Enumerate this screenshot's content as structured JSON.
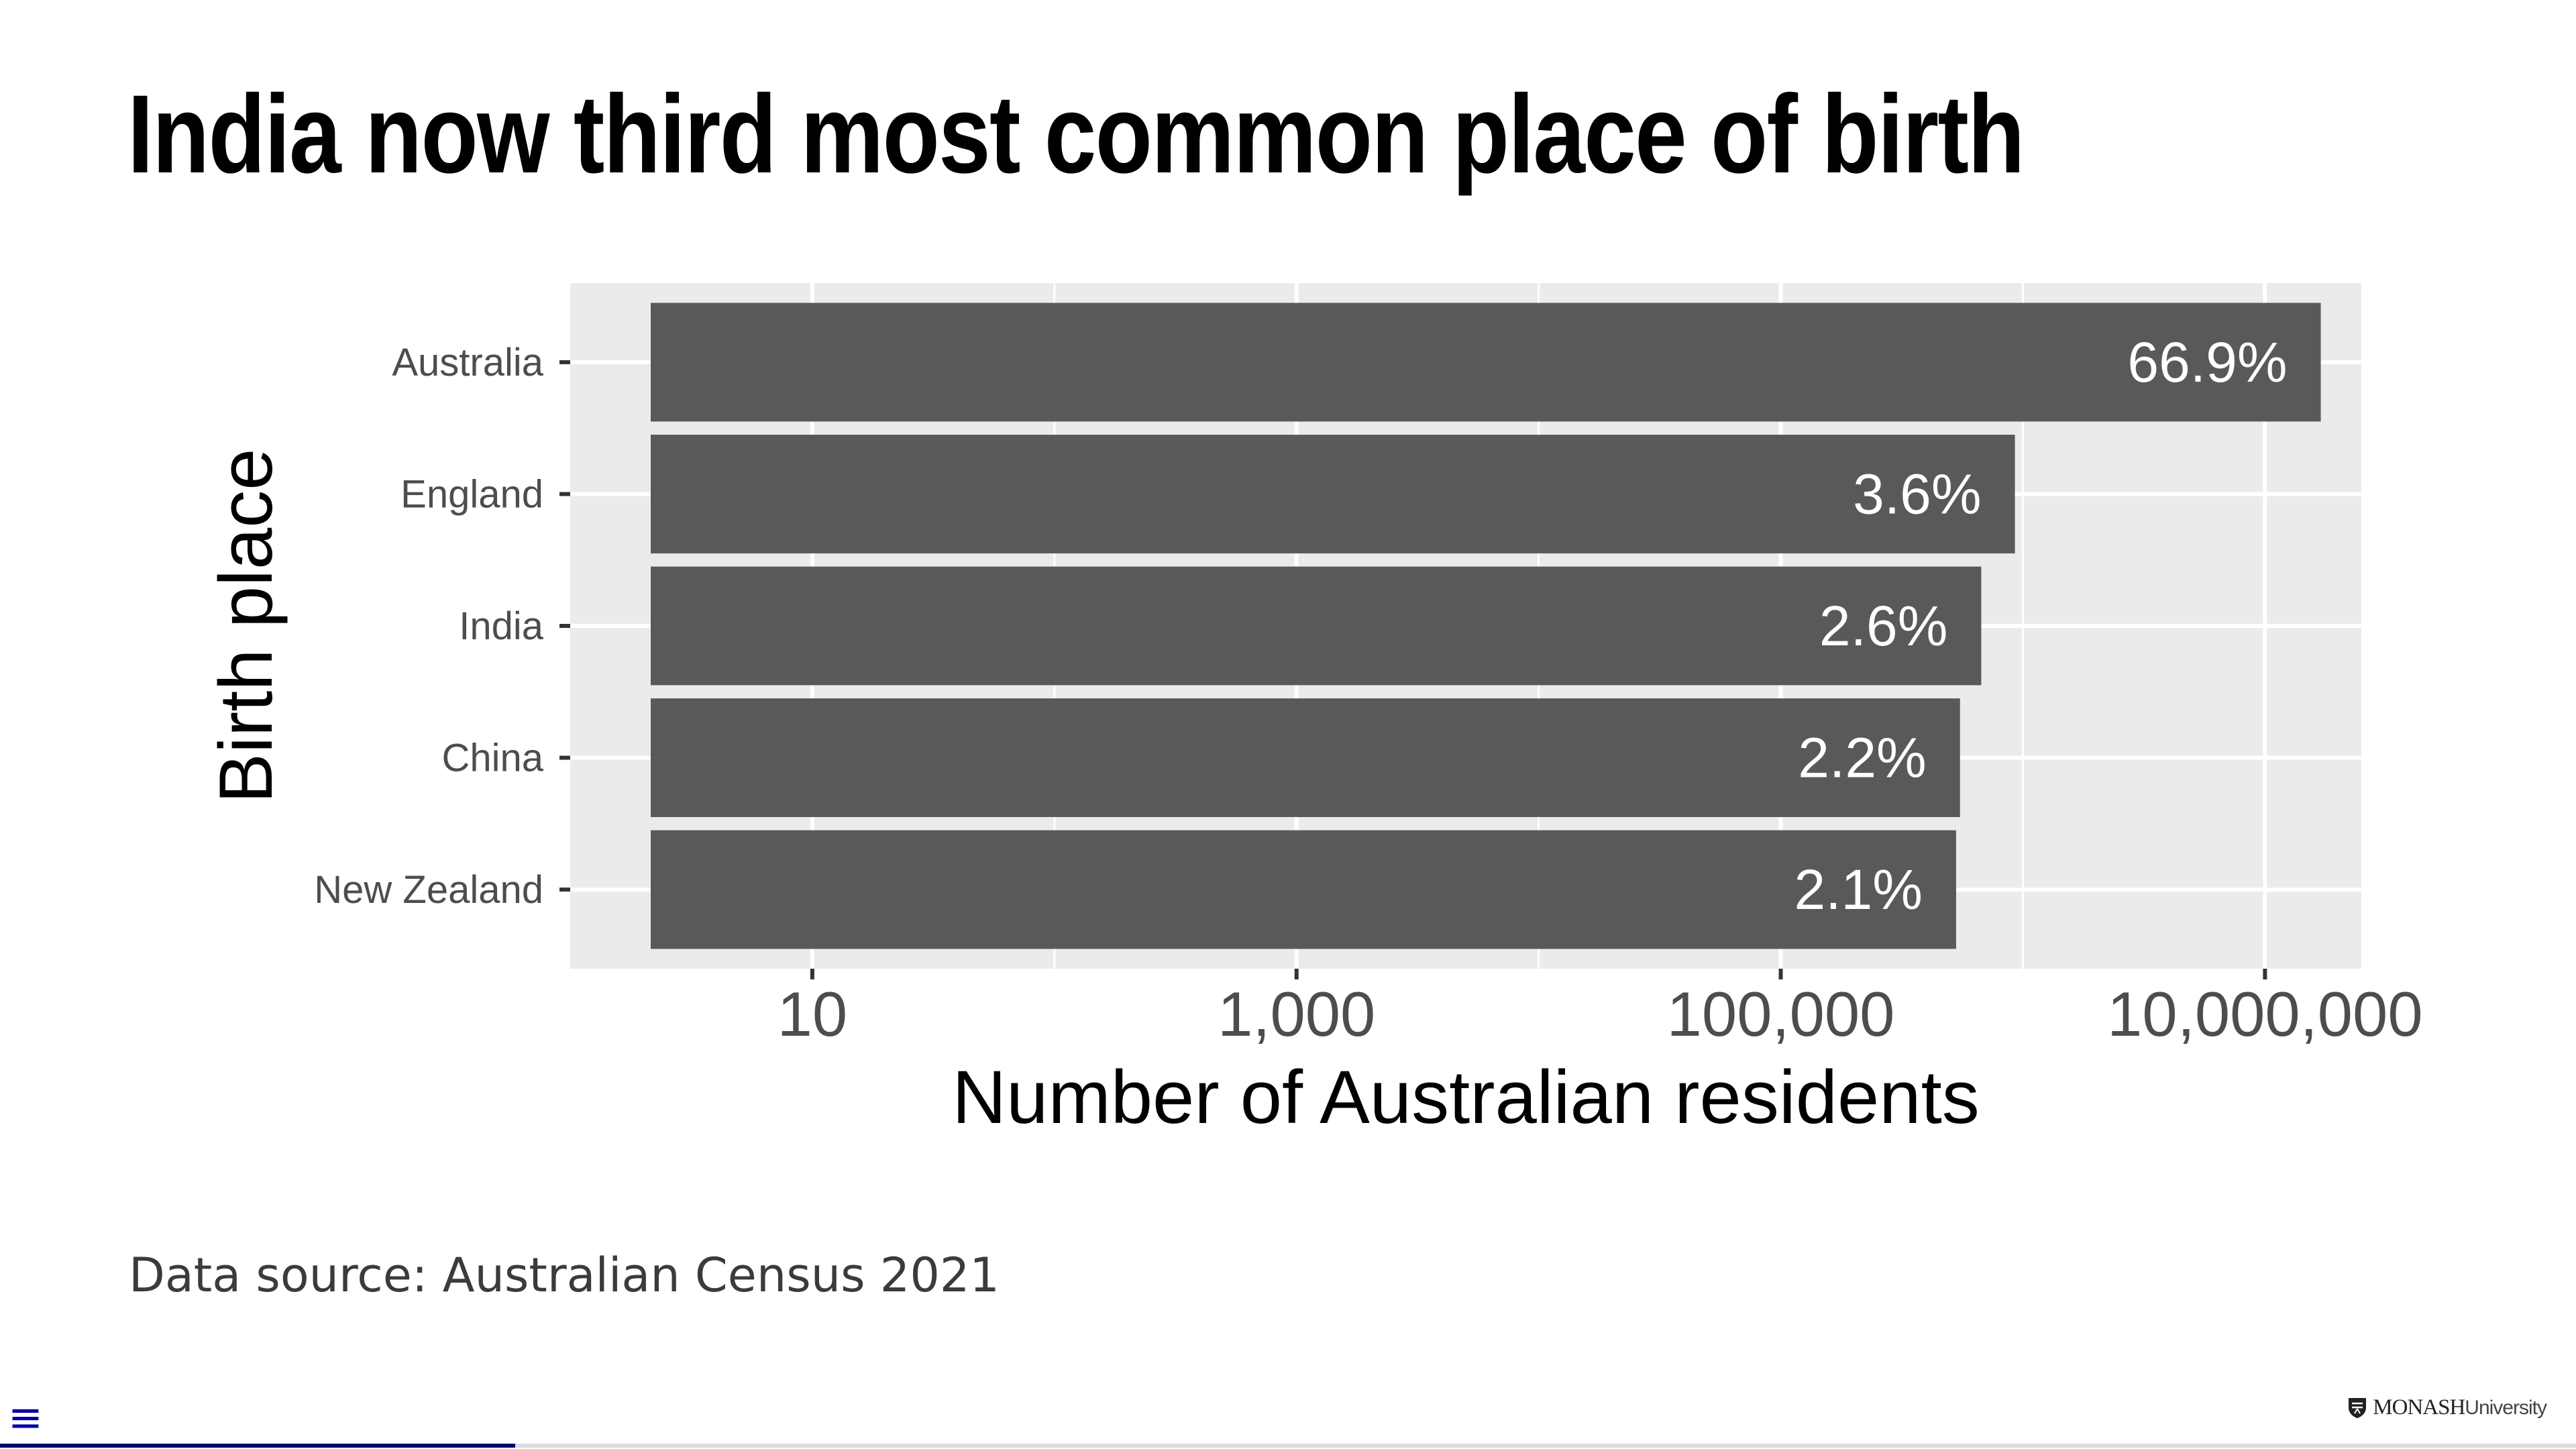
{
  "slide": {
    "title": "India now third most common place of birth",
    "source": "Data source: Australian Census 2021",
    "menu_icon": "hamburger-menu-icon",
    "progress": 0.2,
    "brand": {
      "main": "MONASH",
      "sub": "University",
      "icon": "crest-icon"
    }
  },
  "chart_data": {
    "type": "bar",
    "orientation": "horizontal",
    "xlabel": "Number of Australian residents",
    "ylabel": "Birth place",
    "x_scale": "log10",
    "xlim": [
      1,
      25000000
    ],
    "x_ticks": [
      10,
      1000,
      100000,
      10000000
    ],
    "x_tick_labels": [
      "10",
      "1,000",
      "100,000",
      "10,000,000"
    ],
    "categories": [
      "Australia",
      "England",
      "India",
      "China",
      "New Zealand"
    ],
    "values": [
      17000000,
      927000,
      673000,
      550000,
      530000
    ],
    "data_labels": [
      "66.9%",
      "3.6%",
      "2.6%",
      "2.2%",
      "2.1%"
    ],
    "grid": true,
    "legend": "none",
    "colors": {
      "bar": "#595959",
      "panel": "#ebebeb",
      "grid": "#ffffff",
      "bar_label": "#ffffff",
      "tick_label": "#4d4d4d",
      "axis_title": "#000000"
    }
  }
}
